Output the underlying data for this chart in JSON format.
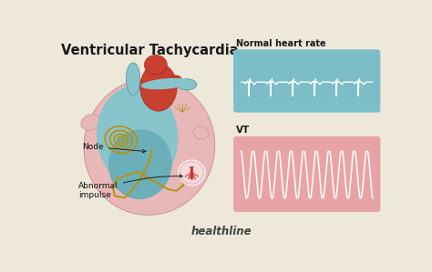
{
  "bg_color": "#ede8da",
  "title": "Ventricular Tachycardia",
  "title_fontsize": 10.5,
  "label_node": "Node",
  "label_abnormal": "Abnormal\nimpulse",
  "label_normal_hr": "Normal heart rate",
  "label_vt": "VT",
  "label_healthline": "healthline",
  "ecg_box_color": "#7bbec8",
  "vt_box_color": "#e8a4a4",
  "ecg_line_color": "#ffffff",
  "vt_line_color": "#ffffff",
  "heart_pink": "#e8b8b8",
  "heart_pink_light": "#f0d0d0",
  "heart_blue": "#88c4cc",
  "heart_blue_mid": "#6aafba",
  "heart_red": "#c84030",
  "heart_gold": "#b8920c",
  "heart_gold2": "#c8a020",
  "impulse_fill": "#f8d8d8",
  "impulse_red": "#cc3030"
}
